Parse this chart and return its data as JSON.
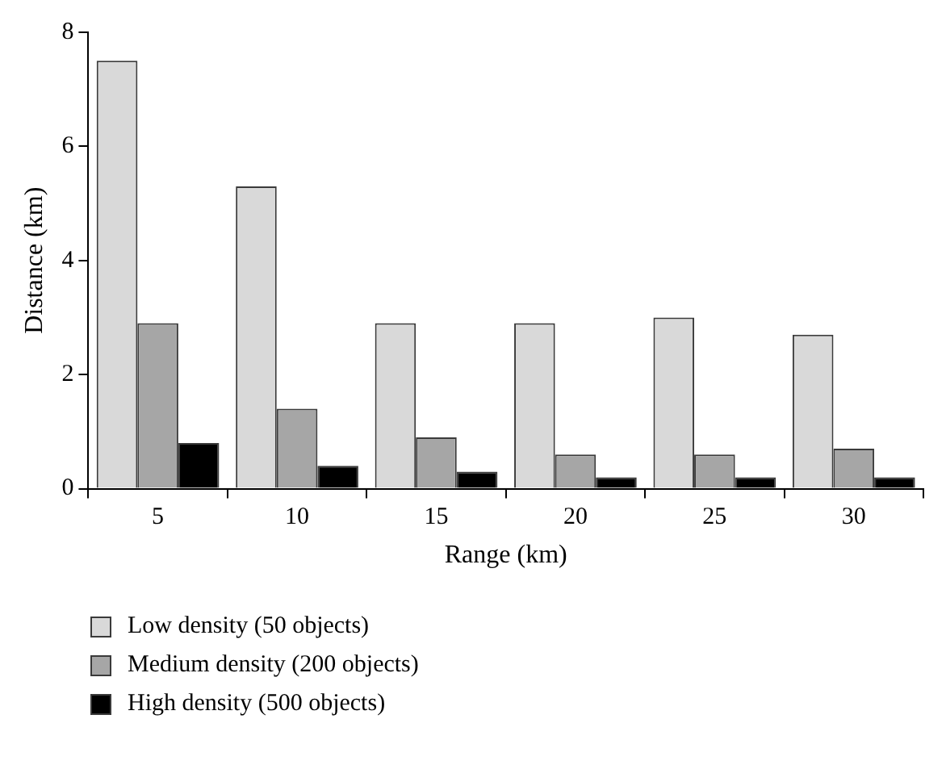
{
  "chart_data": {
    "type": "bar",
    "xlabel": "Range (km)",
    "ylabel": "Distance (km)",
    "categories": [
      "5",
      "10",
      "15",
      "20",
      "25",
      "30"
    ],
    "series": [
      {
        "name": "Low density (50 objects)",
        "color": "#d9d9d9",
        "values": [
          7.5,
          5.3,
          2.9,
          2.9,
          3.0,
          2.7
        ]
      },
      {
        "name": "Medium density (200 objects)",
        "color": "#a6a6a6",
        "values": [
          2.9,
          1.4,
          0.9,
          0.6,
          0.6,
          0.7
        ]
      },
      {
        "name": "High density (500 objects)",
        "color": "#000000",
        "values": [
          0.8,
          0.4,
          0.3,
          0.2,
          0.2,
          0.2
        ]
      }
    ],
    "ylim": [
      0,
      8
    ],
    "yticks": [
      0,
      2,
      4,
      6,
      8
    ],
    "grid": false,
    "legend": "bottom"
  }
}
